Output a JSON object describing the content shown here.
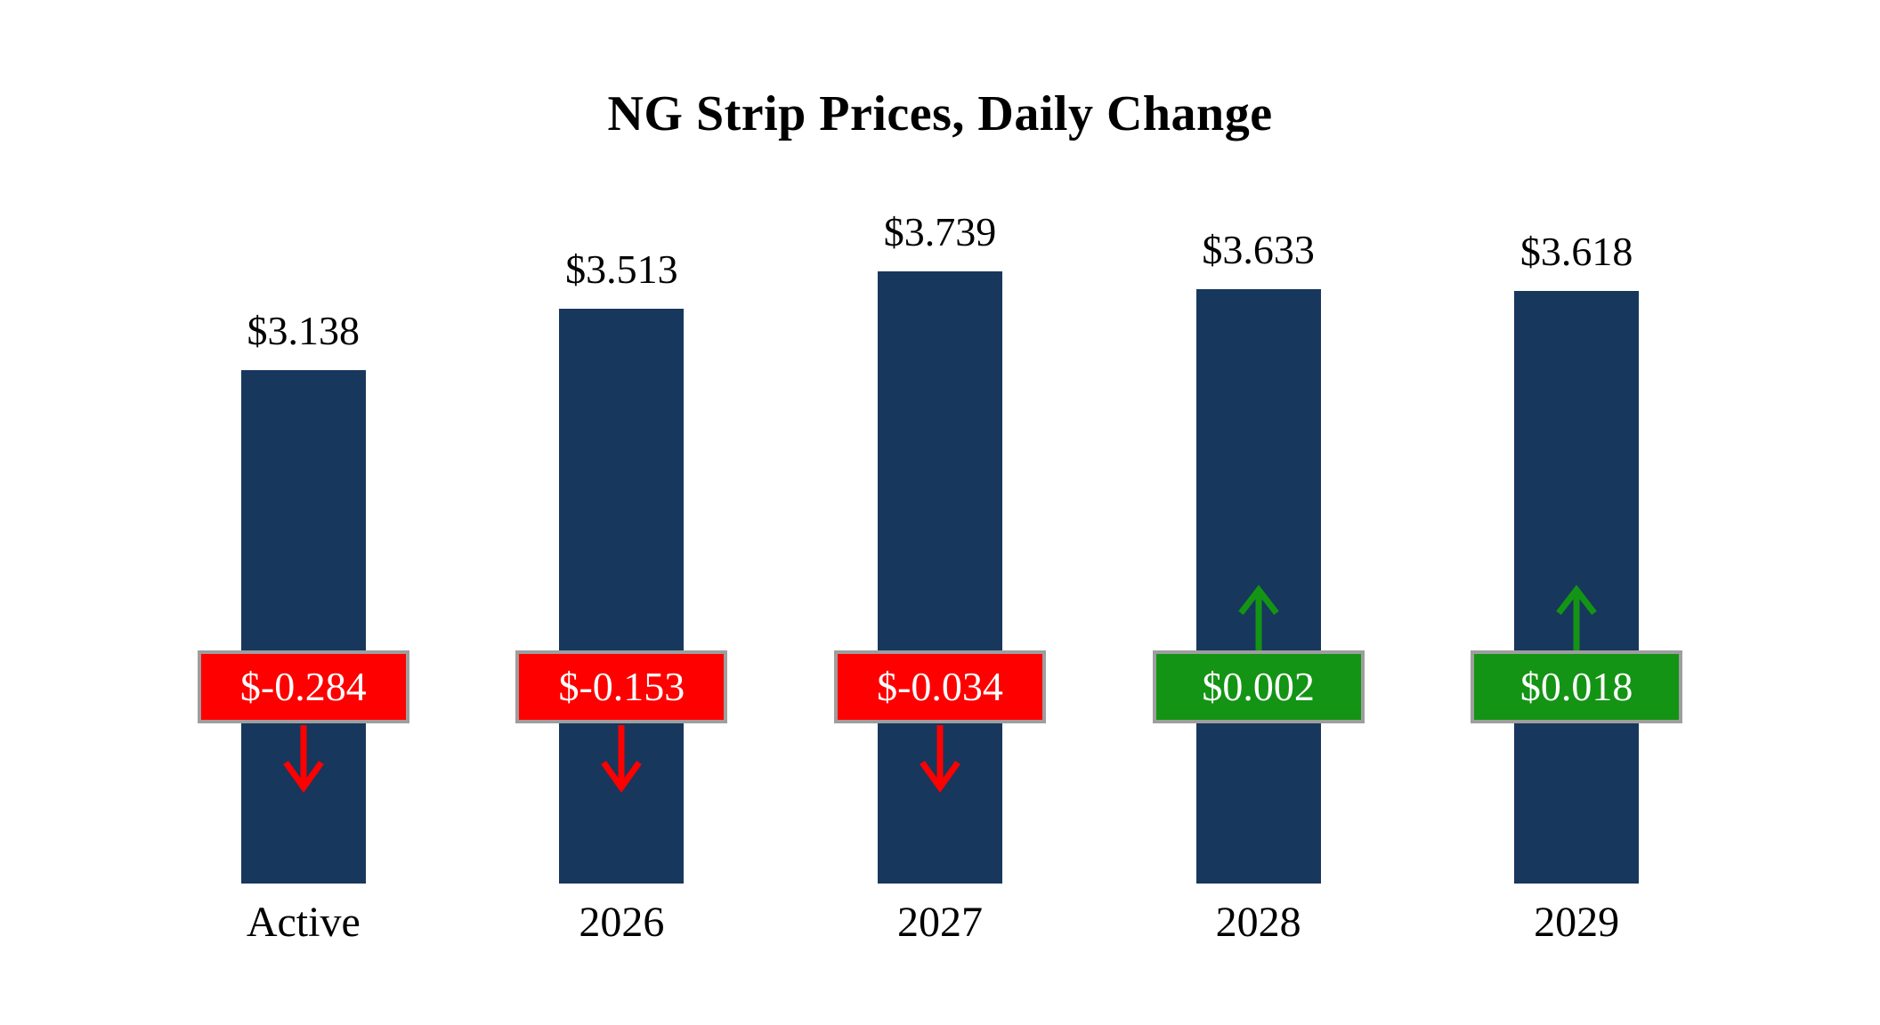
{
  "chart_data": {
    "type": "bar",
    "title": "NG Strip Prices, Daily Change",
    "categories": [
      "Active",
      "2026",
      "2027",
      "2028",
      "2029"
    ],
    "series": [
      {
        "name": "Strip Price",
        "values": [
          3.138,
          3.513,
          3.739,
          3.633,
          3.618
        ]
      },
      {
        "name": "Daily Change",
        "values": [
          -0.284,
          -0.153,
          -0.034,
          0.002,
          0.018
        ]
      }
    ],
    "price_labels": [
      "$3.138",
      "$3.513",
      "$3.739",
      "$3.633",
      "$3.618"
    ],
    "change_labels": [
      "$-0.284",
      "$-0.153",
      "$-0.034",
      "$0.002",
      "$0.018"
    ],
    "directions": [
      "down",
      "down",
      "down",
      "up",
      "up"
    ],
    "xlabel": "",
    "ylabel": "",
    "ylim": [
      0,
      4
    ],
    "grid": false,
    "legend": "none",
    "colors": {
      "bar": "#17375D",
      "negative": "#FE0000",
      "positive": "#149414",
      "badge_border": "#9e9e9e",
      "badge_text": "#ffffff",
      "text": "#000000"
    }
  }
}
